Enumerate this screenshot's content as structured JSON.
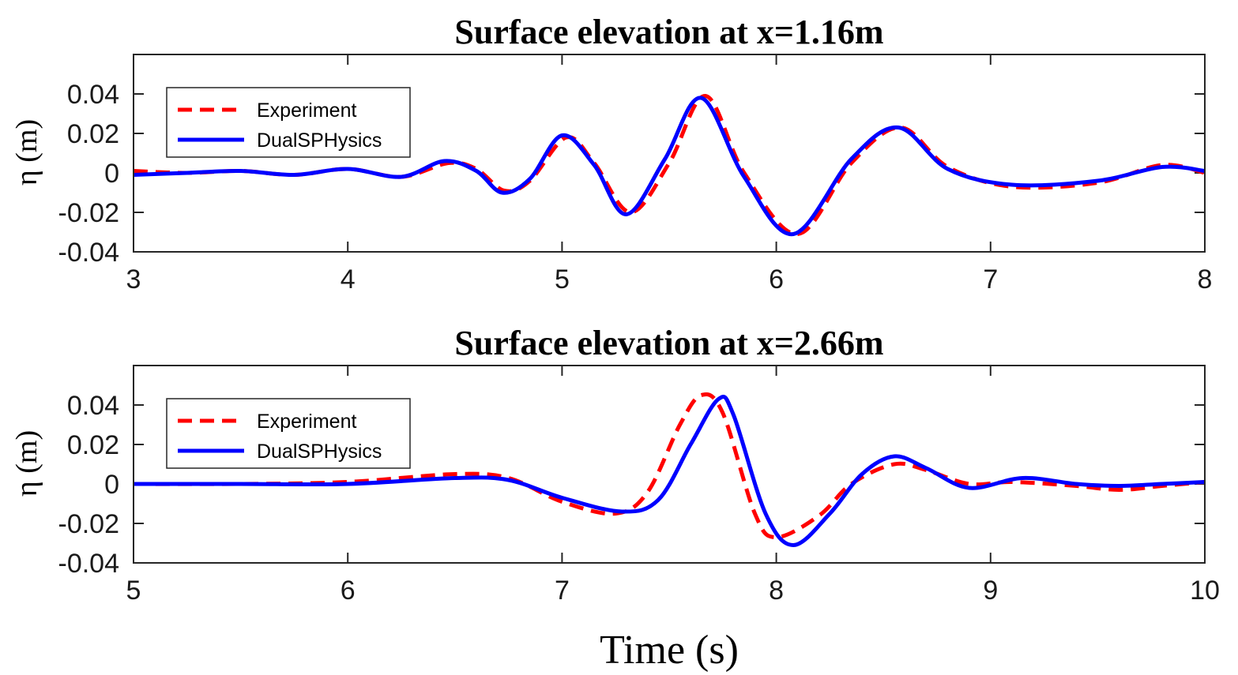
{
  "chart_data": [
    {
      "type": "line",
      "title": "Surface elevation at x=1.16m",
      "ylabel": "η (m)",
      "xlabel": "",
      "xlim": [
        3,
        8
      ],
      "ylim": [
        -0.04,
        0.06
      ],
      "xticks": [
        "3",
        "4",
        "5",
        "6",
        "7",
        "8"
      ],
      "yticks": [
        "0.04",
        "0.02",
        "0",
        "-0.02",
        "-0.04"
      ],
      "grid": false,
      "legend": "top-left",
      "series": [
        {
          "name": "Experiment",
          "color": "#ff0000",
          "style": "dashed",
          "x": [
            3.0,
            3.25,
            3.5,
            3.75,
            4.0,
            4.25,
            4.47,
            4.6,
            4.73,
            4.85,
            5.02,
            5.15,
            5.32,
            5.5,
            5.67,
            5.85,
            6.1,
            6.35,
            6.58,
            6.8,
            7.1,
            7.5,
            7.8,
            8.0
          ],
          "y": [
            0.001,
            0.0,
            0.001,
            -0.001,
            0.002,
            -0.002,
            0.005,
            0.002,
            -0.009,
            -0.004,
            0.018,
            0.005,
            -0.02,
            0.005,
            0.039,
            0.0,
            -0.031,
            0.005,
            0.023,
            0.003,
            -0.007,
            -0.005,
            0.004,
            0.0
          ]
        },
        {
          "name": "DualSPHysics",
          "color": "#0000ff",
          "style": "solid",
          "x": [
            3.0,
            3.25,
            3.5,
            3.75,
            4.0,
            4.25,
            4.45,
            4.6,
            4.72,
            4.85,
            5.0,
            5.15,
            5.3,
            5.48,
            5.65,
            5.85,
            6.08,
            6.35,
            6.57,
            6.8,
            7.1,
            7.5,
            7.8,
            8.0
          ],
          "y": [
            -0.001,
            0.0,
            0.001,
            -0.001,
            0.002,
            -0.002,
            0.006,
            0.001,
            -0.01,
            -0.003,
            0.019,
            0.004,
            -0.021,
            0.007,
            0.038,
            -0.002,
            -0.031,
            0.007,
            0.023,
            0.002,
            -0.006,
            -0.004,
            0.003,
            0.001
          ]
        }
      ]
    },
    {
      "type": "line",
      "title": "Surface elevation at x=2.66m",
      "ylabel": "η (m)",
      "xlabel": "Time (s)",
      "xlim": [
        5,
        10
      ],
      "ylim": [
        -0.04,
        0.06
      ],
      "xticks": [
        "5",
        "6",
        "7",
        "8",
        "9",
        "10"
      ],
      "yticks": [
        "0.04",
        "0.02",
        "0",
        "-0.02",
        "-0.04"
      ],
      "grid": false,
      "legend": "top-left",
      "series": [
        {
          "name": "Experiment",
          "color": "#ff0000",
          "style": "dashed",
          "x": [
            5.0,
            5.5,
            6.0,
            6.5,
            6.75,
            7.0,
            7.25,
            7.4,
            7.55,
            7.65,
            7.75,
            7.9,
            8.0,
            8.2,
            8.35,
            8.55,
            8.7,
            8.9,
            9.1,
            9.4,
            9.6,
            9.8,
            10.0
          ],
          "y": [
            0.0,
            0.0,
            0.001,
            0.005,
            0.003,
            -0.009,
            -0.015,
            -0.004,
            0.03,
            0.045,
            0.036,
            -0.015,
            -0.027,
            -0.016,
            0.0,
            0.01,
            0.007,
            0.0,
            0.001,
            -0.001,
            -0.003,
            -0.001,
            0.001
          ]
        },
        {
          "name": "DualSPHysics",
          "color": "#0000ff",
          "style": "solid",
          "x": [
            5.0,
            5.5,
            6.0,
            6.5,
            6.75,
            7.0,
            7.28,
            7.45,
            7.6,
            7.73,
            7.8,
            7.95,
            8.08,
            8.25,
            8.4,
            8.55,
            8.7,
            8.9,
            9.15,
            9.4,
            9.6,
            9.8,
            10.0
          ],
          "y": [
            0.0,
            0.0,
            0.0,
            0.003,
            0.002,
            -0.007,
            -0.014,
            -0.008,
            0.02,
            0.043,
            0.035,
            -0.015,
            -0.031,
            -0.015,
            0.005,
            0.014,
            0.008,
            -0.002,
            0.003,
            0.0,
            -0.001,
            0.0,
            0.001
          ]
        }
      ]
    }
  ]
}
